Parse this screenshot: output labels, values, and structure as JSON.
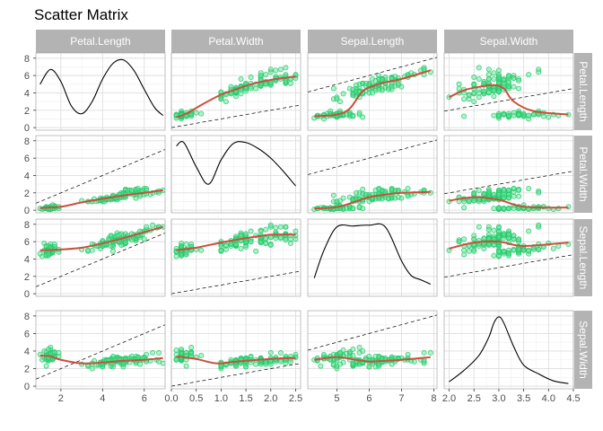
{
  "chart_data": {
    "type": "scatter",
    "title": "Scatter Matrix",
    "variables": [
      "Petal.Length",
      "Petal.Width",
      "Sepal.Length",
      "Sepal.Width"
    ],
    "axes": {
      "Petal.Length": {
        "range": [
          0.8,
          7.0
        ],
        "ticks": [
          2,
          4,
          6
        ],
        "ylim": [
          -0.3,
          8.6
        ],
        "yticks": [
          0,
          2,
          4,
          6,
          8
        ]
      },
      "Petal.Width": {
        "range": [
          0.0,
          2.6
        ],
        "ticks": [
          0.0,
          0.5,
          1.0,
          1.5,
          2.0,
          2.5
        ],
        "ylim": [
          -0.3,
          8.6
        ],
        "yticks": [
          0,
          2,
          4,
          6,
          8
        ]
      },
      "Sepal.Length": {
        "range": [
          4.1,
          8.1
        ],
        "ticks": [
          5,
          6,
          7,
          8
        ],
        "ylim": [
          -0.3,
          8.6
        ],
        "yticks": [
          0,
          2,
          4,
          6,
          8
        ]
      },
      "Sepal.Width": {
        "range": [
          1.9,
          4.5
        ],
        "ticks": [
          2.0,
          2.5,
          3.0,
          3.5,
          4.0,
          4.5
        ],
        "ylim": [
          -0.3,
          8.6
        ],
        "yticks": [
          0,
          2,
          4,
          6,
          8
        ]
      }
    },
    "tick_labels": {
      "x": {
        "Petal.Length": [
          "2",
          "4",
          "6"
        ],
        "Petal.Width": [
          "0.0",
          "0.5",
          "1.0",
          "1.5",
          "2.0",
          "2.5"
        ],
        "Sepal.Length": [
          "5",
          "6",
          "7",
          "8"
        ],
        "Sepal.Width": [
          "2.0",
          "2.5",
          "3.0",
          "3.5",
          "4.0",
          "4.5"
        ]
      },
      "y": [
        "0",
        "2",
        "4",
        "6",
        "8"
      ]
    },
    "diagonal_density": {
      "Petal.Length": {
        "x": [
          1.0,
          1.5,
          2.0,
          2.5,
          3.0,
          3.5,
          4.0,
          4.5,
          5.0,
          5.5,
          6.0,
          6.5,
          6.9
        ],
        "y": [
          5.0,
          6.7,
          5.3,
          2.5,
          1.6,
          3.0,
          5.6,
          7.4,
          7.8,
          6.6,
          4.4,
          2.3,
          1.4
        ]
      },
      "Petal.Width": {
        "x": [
          0.1,
          0.25,
          0.5,
          0.75,
          1.0,
          1.25,
          1.5,
          1.75,
          2.0,
          2.25,
          2.5
        ],
        "y": [
          7.4,
          7.8,
          5.0,
          3.0,
          5.8,
          7.7,
          7.8,
          7.1,
          6.0,
          4.5,
          2.8
        ]
      },
      "Sepal.Length": {
        "x": [
          4.3,
          4.6,
          5.0,
          5.5,
          6.0,
          6.5,
          7.0,
          7.3,
          7.6,
          7.9
        ],
        "y": [
          1.8,
          5.0,
          7.7,
          7.8,
          7.9,
          7.7,
          3.8,
          2.1,
          1.6,
          1.1
        ]
      },
      "Sepal.Width": {
        "x": [
          2.0,
          2.3,
          2.6,
          2.8,
          2.9,
          3.0,
          3.1,
          3.3,
          3.5,
          3.8,
          4.1,
          4.4
        ],
        "y": [
          0.5,
          1.8,
          3.5,
          5.6,
          7.2,
          7.9,
          7.2,
          4.5,
          2.4,
          1.4,
          0.6,
          0.3
        ]
      }
    },
    "smooth_curves": {
      "Petal.Width|Petal.Length": {
        "x": [
          0.1,
          0.3,
          0.6,
          1.0,
          1.3,
          1.6,
          2.0,
          2.5
        ],
        "y": [
          1.2,
          1.6,
          2.6,
          3.8,
          4.4,
          5.0,
          5.5,
          5.9
        ]
      },
      "Sepal.Length|Petal.Length": {
        "x": [
          4.3,
          5.0,
          5.4,
          5.8,
          6.2,
          6.6,
          7.0,
          7.9
        ],
        "y": [
          1.3,
          1.5,
          2.2,
          4.2,
          4.9,
          5.3,
          5.6,
          6.6
        ]
      },
      "Sepal.Width|Petal.Length": {
        "x": [
          2.0,
          2.3,
          2.6,
          2.9,
          3.1,
          3.3,
          3.7,
          4.4
        ],
        "y": [
          3.5,
          4.3,
          4.7,
          4.9,
          4.5,
          3.0,
          1.9,
          1.5
        ]
      },
      "Petal.Length|Petal.Width": {
        "x": [
          1.0,
          2.0,
          3.0,
          4.0,
          5.0,
          6.0,
          6.9
        ],
        "y": [
          0.25,
          0.4,
          0.9,
          1.3,
          1.7,
          2.0,
          2.3
        ]
      },
      "Sepal.Length|Petal.Width": {
        "x": [
          4.3,
          5.0,
          5.5,
          6.0,
          6.5,
          7.0,
          7.9
        ],
        "y": [
          0.2,
          0.35,
          0.9,
          1.5,
          1.8,
          2.0,
          2.1
        ]
      },
      "Sepal.Width|Petal.Width": {
        "x": [
          2.0,
          2.5,
          3.0,
          3.5,
          4.4
        ],
        "y": [
          1.1,
          1.5,
          1.2,
          0.4,
          0.3
        ]
      },
      "Petal.Length|Sepal.Length": {
        "x": [
          1.0,
          2.0,
          3.0,
          4.0,
          5.0,
          6.0,
          6.9
        ],
        "y": [
          5.0,
          5.1,
          5.3,
          5.8,
          6.4,
          7.1,
          7.7
        ]
      },
      "Petal.Width|Sepal.Length": {
        "x": [
          0.1,
          0.5,
          1.0,
          1.5,
          2.0,
          2.5
        ],
        "y": [
          5.0,
          5.3,
          5.9,
          6.4,
          6.8,
          6.8
        ]
      },
      "Sepal.Width|Sepal.Length": {
        "x": [
          2.0,
          2.5,
          3.0,
          3.5,
          4.4
        ],
        "y": [
          5.2,
          5.9,
          6.0,
          5.5,
          5.9
        ]
      },
      "Petal.Length|Sepal.Width": {
        "x": [
          1.0,
          1.5,
          2.0,
          3.0,
          4.0,
          5.0,
          6.0,
          6.9
        ],
        "y": [
          3.5,
          3.4,
          3.0,
          2.6,
          2.7,
          2.9,
          3.0,
          3.2
        ]
      },
      "Petal.Width|Sepal.Width": {
        "x": [
          0.1,
          0.5,
          0.9,
          1.3,
          2.0,
          2.5
        ],
        "y": [
          3.4,
          3.1,
          2.6,
          2.8,
          3.1,
          3.2
        ]
      },
      "Sepal.Length|Sepal.Width": {
        "x": [
          4.3,
          5.0,
          5.6,
          6.0,
          6.5,
          7.0,
          7.9
        ],
        "y": [
          3.0,
          3.3,
          3.0,
          2.8,
          2.9,
          3.0,
          3.3
        ]
      }
    },
    "reference_lines": {
      "slope": 1,
      "intercept": 0
    },
    "grid": true,
    "colors": {
      "points": "#1fc86b",
      "point_fill": "#5ee08f",
      "smooth": "#c9503d",
      "density": "#000000",
      "strip": "#b3b3b3",
      "grid": "#dedede",
      "panel_border": "#999999"
    },
    "iris": {
      "Sepal.Length": [
        5.1,
        4.9,
        4.7,
        4.6,
        5.0,
        5.4,
        4.6,
        5.0,
        4.4,
        4.9,
        5.4,
        4.8,
        4.8,
        4.3,
        5.8,
        5.7,
        5.4,
        5.1,
        5.7,
        5.1,
        5.4,
        5.1,
        4.6,
        5.1,
        4.8,
        5.0,
        5.0,
        5.2,
        5.2,
        4.7,
        4.8,
        5.4,
        5.2,
        5.5,
        4.9,
        5.0,
        5.5,
        4.9,
        4.4,
        5.1,
        5.0,
        4.5,
        4.4,
        5.0,
        5.1,
        4.8,
        5.1,
        4.6,
        5.3,
        5.0,
        7.0,
        6.4,
        6.9,
        5.5,
        6.5,
        5.7,
        6.3,
        4.9,
        6.6,
        5.2,
        5.0,
        5.9,
        6.0,
        6.1,
        5.6,
        6.7,
        5.6,
        5.8,
        6.2,
        5.6,
        5.9,
        6.1,
        6.3,
        6.1,
        6.4,
        6.6,
        6.8,
        6.7,
        6.0,
        5.7,
        5.5,
        5.5,
        5.8,
        6.0,
        5.4,
        6.0,
        6.7,
        6.3,
        5.6,
        5.5,
        5.5,
        6.1,
        5.8,
        5.0,
        5.6,
        5.7,
        5.7,
        6.2,
        5.1,
        5.7,
        6.3,
        5.8,
        7.1,
        6.3,
        6.5,
        7.6,
        4.9,
        7.3,
        6.7,
        7.2,
        6.5,
        6.4,
        6.8,
        5.7,
        5.8,
        6.4,
        6.5,
        7.7,
        7.7,
        6.0,
        6.9,
        5.6,
        7.7,
        6.3,
        6.7,
        7.2,
        6.2,
        6.1,
        6.4,
        7.2,
        7.4,
        7.9,
        6.4,
        6.3,
        6.1,
        7.7,
        6.3,
        6.4,
        6.0,
        6.9,
        6.7,
        6.9,
        5.8,
        6.8,
        6.7,
        6.7,
        6.3,
        6.5,
        6.2,
        5.9
      ],
      "Sepal.Width": [
        3.5,
        3.0,
        3.2,
        3.1,
        3.6,
        3.9,
        3.4,
        3.4,
        2.9,
        3.1,
        3.7,
        3.4,
        3.0,
        3.0,
        4.0,
        4.4,
        3.9,
        3.5,
        3.8,
        3.8,
        3.4,
        3.7,
        3.6,
        3.3,
        3.4,
        3.0,
        3.4,
        3.5,
        3.4,
        3.2,
        3.1,
        3.4,
        4.1,
        4.2,
        3.1,
        3.2,
        3.5,
        3.6,
        3.0,
        3.4,
        3.5,
        2.3,
        3.2,
        3.5,
        3.8,
        3.0,
        3.8,
        3.2,
        3.7,
        3.3,
        3.2,
        3.2,
        3.1,
        2.3,
        2.8,
        2.8,
        3.3,
        2.4,
        2.9,
        2.7,
        2.0,
        3.0,
        2.2,
        2.9,
        2.9,
        3.1,
        3.0,
        2.7,
        2.2,
        2.5,
        3.2,
        2.8,
        2.5,
        2.8,
        2.9,
        3.0,
        2.8,
        3.0,
        2.9,
        2.6,
        2.4,
        2.4,
        2.7,
        2.7,
        3.0,
        3.4,
        3.1,
        2.3,
        3.0,
        2.5,
        2.6,
        3.0,
        2.6,
        2.3,
        2.7,
        3.0,
        2.9,
        2.9,
        2.5,
        2.8,
        3.3,
        2.7,
        3.0,
        2.9,
        3.0,
        3.0,
        2.5,
        2.9,
        2.5,
        3.6,
        3.2,
        2.7,
        3.0,
        2.5,
        2.8,
        3.2,
        3.0,
        3.8,
        2.6,
        2.2,
        3.2,
        2.8,
        2.8,
        2.7,
        3.3,
        3.2,
        2.8,
        3.0,
        2.8,
        3.0,
        2.8,
        3.8,
        2.8,
        2.8,
        2.6,
        3.0,
        3.4,
        3.1,
        3.0,
        3.1,
        3.1,
        3.1,
        2.7,
        3.2,
        3.3,
        3.0,
        2.5,
        3.0,
        3.4,
        3.0
      ],
      "Petal.Length": [
        1.4,
        1.4,
        1.3,
        1.5,
        1.4,
        1.7,
        1.4,
        1.5,
        1.4,
        1.5,
        1.5,
        1.6,
        1.4,
        1.1,
        1.2,
        1.5,
        1.3,
        1.4,
        1.7,
        1.5,
        1.7,
        1.5,
        1.0,
        1.7,
        1.9,
        1.6,
        1.6,
        1.5,
        1.4,
        1.6,
        1.6,
        1.5,
        1.5,
        1.4,
        1.5,
        1.2,
        1.3,
        1.4,
        1.3,
        1.5,
        1.3,
        1.3,
        1.3,
        1.6,
        1.9,
        1.4,
        1.6,
        1.4,
        1.5,
        1.4,
        4.7,
        4.5,
        4.9,
        4.0,
        4.6,
        4.5,
        4.7,
        3.3,
        4.6,
        3.9,
        3.5,
        4.2,
        4.0,
        4.7,
        3.6,
        4.4,
        4.5,
        4.1,
        4.5,
        3.9,
        4.8,
        4.0,
        4.9,
        4.7,
        4.3,
        4.4,
        4.8,
        5.0,
        4.5,
        3.5,
        3.8,
        3.7,
        3.9,
        5.1,
        4.5,
        4.5,
        4.7,
        4.4,
        4.1,
        4.0,
        4.4,
        4.6,
        4.0,
        3.3,
        4.2,
        4.2,
        4.2,
        4.3,
        3.0,
        4.1,
        6.0,
        5.1,
        5.9,
        5.6,
        5.8,
        6.6,
        4.5,
        6.3,
        5.8,
        6.1,
        5.1,
        5.3,
        5.5,
        5.0,
        5.1,
        5.3,
        5.5,
        6.7,
        6.9,
        5.0,
        5.7,
        4.9,
        6.7,
        4.9,
        5.7,
        6.0,
        4.8,
        4.9,
        5.6,
        5.8,
        6.1,
        6.4,
        5.6,
        5.1,
        5.6,
        6.1,
        5.6,
        5.5,
        4.8,
        5.4,
        5.6,
        5.1,
        5.1,
        5.9,
        5.7,
        5.2,
        5.0,
        5.2,
        5.4,
        5.1
      ],
      "Petal.Width": [
        0.2,
        0.2,
        0.2,
        0.2,
        0.2,
        0.4,
        0.3,
        0.2,
        0.2,
        0.1,
        0.2,
        0.2,
        0.1,
        0.1,
        0.2,
        0.4,
        0.4,
        0.3,
        0.3,
        0.3,
        0.2,
        0.4,
        0.2,
        0.5,
        0.2,
        0.2,
        0.4,
        0.2,
        0.2,
        0.2,
        0.2,
        0.4,
        0.1,
        0.2,
        0.2,
        0.2,
        0.2,
        0.1,
        0.2,
        0.2,
        0.3,
        0.3,
        0.2,
        0.6,
        0.4,
        0.3,
        0.2,
        0.2,
        0.2,
        0.2,
        1.4,
        1.5,
        1.5,
        1.3,
        1.5,
        1.3,
        1.6,
        1.0,
        1.3,
        1.4,
        1.0,
        1.5,
        1.0,
        1.4,
        1.3,
        1.4,
        1.5,
        1.0,
        1.5,
        1.1,
        1.8,
        1.3,
        1.5,
        1.2,
        1.3,
        1.4,
        1.4,
        1.7,
        1.5,
        1.0,
        1.1,
        1.0,
        1.2,
        1.6,
        1.5,
        1.6,
        1.5,
        1.3,
        1.3,
        1.3,
        1.2,
        1.4,
        1.2,
        1.0,
        1.3,
        1.2,
        1.3,
        1.3,
        1.1,
        1.3,
        2.5,
        1.9,
        2.1,
        1.8,
        2.2,
        2.1,
        1.7,
        1.8,
        1.8,
        2.5,
        2.0,
        1.9,
        2.1,
        2.0,
        2.4,
        2.3,
        1.8,
        2.2,
        2.3,
        1.5,
        2.3,
        2.0,
        2.0,
        1.8,
        2.1,
        1.8,
        1.8,
        1.8,
        2.1,
        1.6,
        1.9,
        2.0,
        2.2,
        1.5,
        1.4,
        2.3,
        2.4,
        1.8,
        1.8,
        2.1,
        2.4,
        2.3,
        1.9,
        2.3,
        2.5,
        2.3,
        1.9,
        2.0,
        2.3,
        1.8
      ]
    }
  }
}
